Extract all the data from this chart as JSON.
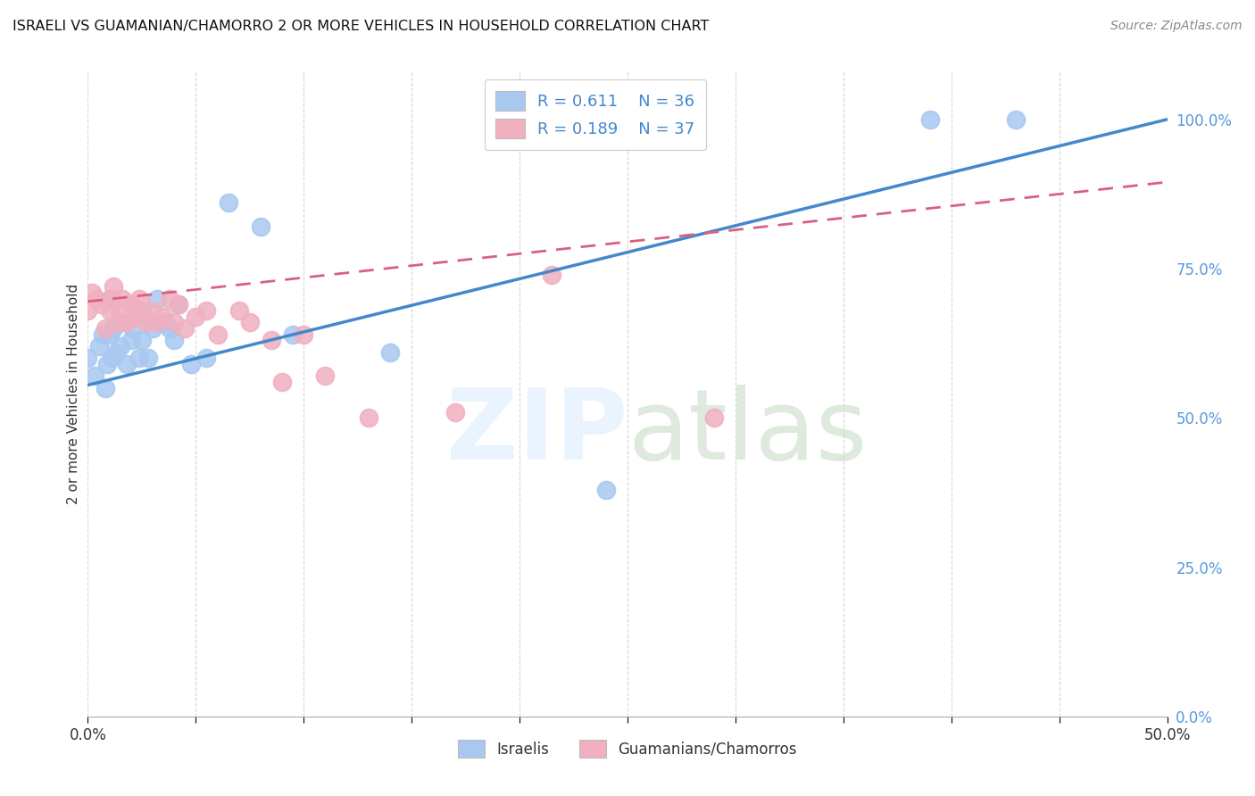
{
  "title": "ISRAELI VS GUAMANIAN/CHAMORRO 2 OR MORE VEHICLES IN HOUSEHOLD CORRELATION CHART",
  "source": "Source: ZipAtlas.com",
  "ylabel": "2 or more Vehicles in Household",
  "x_min": 0.0,
  "x_max": 0.5,
  "y_min": 0.0,
  "y_max": 1.08,
  "x_tick_positions": [
    0.0,
    0.05,
    0.1,
    0.15,
    0.2,
    0.25,
    0.3,
    0.35,
    0.4,
    0.45,
    0.5
  ],
  "x_tick_labels": [
    "0.0%",
    "",
    "",
    "",
    "",
    "",
    "",
    "",
    "",
    "",
    "50.0%"
  ],
  "y_ticks_right": [
    0.0,
    0.25,
    0.5,
    0.75,
    1.0
  ],
  "y_tick_labels_right": [
    "0.0%",
    "25.0%",
    "50.0%",
    "75.0%",
    "100.0%"
  ],
  "legend_r_blue": "0.611",
  "legend_n_blue": "36",
  "legend_r_pink": "0.189",
  "legend_n_pink": "37",
  "blue_color": "#a8c8f0",
  "pink_color": "#f0b0c0",
  "blue_line_color": "#4488cc",
  "pink_line_color": "#d96080",
  "legend_label_israelis": "Israelis",
  "legend_label_guamanians": "Guamanians/Chamorros",
  "israeli_x": [
    0.0,
    0.003,
    0.005,
    0.007,
    0.008,
    0.009,
    0.01,
    0.01,
    0.011,
    0.012,
    0.013,
    0.015,
    0.016,
    0.018,
    0.02,
    0.021,
    0.022,
    0.024,
    0.025,
    0.026,
    0.028,
    0.03,
    0.032,
    0.035,
    0.038,
    0.04,
    0.042,
    0.048,
    0.055,
    0.065,
    0.08,
    0.095,
    0.14,
    0.24,
    0.39,
    0.43
  ],
  "israeli_y": [
    0.6,
    0.57,
    0.62,
    0.64,
    0.55,
    0.59,
    0.64,
    0.7,
    0.6,
    0.65,
    0.61,
    0.62,
    0.66,
    0.59,
    0.63,
    0.65,
    0.68,
    0.6,
    0.63,
    0.67,
    0.6,
    0.65,
    0.7,
    0.66,
    0.65,
    0.63,
    0.69,
    0.59,
    0.6,
    0.86,
    0.82,
    0.64,
    0.61,
    0.38,
    1.0,
    1.0
  ],
  "guamanian_x": [
    0.0,
    0.002,
    0.004,
    0.006,
    0.008,
    0.01,
    0.011,
    0.012,
    0.014,
    0.015,
    0.016,
    0.018,
    0.02,
    0.022,
    0.024,
    0.025,
    0.027,
    0.03,
    0.032,
    0.035,
    0.038,
    0.04,
    0.042,
    0.045,
    0.05,
    0.055,
    0.06,
    0.07,
    0.075,
    0.085,
    0.09,
    0.1,
    0.11,
    0.13,
    0.17,
    0.215,
    0.29
  ],
  "guamanian_y": [
    0.68,
    0.71,
    0.7,
    0.69,
    0.65,
    0.68,
    0.7,
    0.72,
    0.66,
    0.68,
    0.7,
    0.66,
    0.69,
    0.67,
    0.7,
    0.68,
    0.66,
    0.68,
    0.66,
    0.67,
    0.7,
    0.66,
    0.69,
    0.65,
    0.67,
    0.68,
    0.64,
    0.68,
    0.66,
    0.63,
    0.56,
    0.64,
    0.57,
    0.5,
    0.51,
    0.74,
    0.5
  ]
}
